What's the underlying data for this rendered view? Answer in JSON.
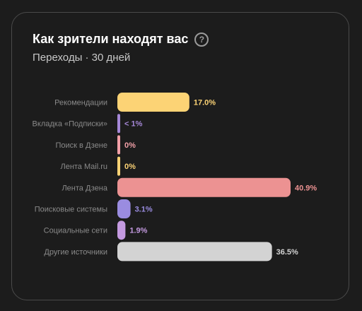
{
  "card": {
    "title": "Как зрители находят вас",
    "help_icon": "question-circle-icon",
    "help_symbol": "?",
    "subtitle": "Переходы · 30 дней"
  },
  "chart_data": {
    "type": "bar",
    "orientation": "horizontal",
    "categories": [
      "Рекомендации",
      "Вкладка «Подписки»",
      "Поиск в Дзене",
      "Лента Mail.ru",
      "Лента Дзена",
      "Поисковые системы",
      "Социальные сети",
      "Другие источники"
    ],
    "values": [
      17.0,
      0.5,
      0.0,
      0.0,
      40.9,
      3.1,
      1.9,
      36.5
    ],
    "value_labels": [
      "17.0%",
      "< 1%",
      "0%",
      "0%",
      "40.9%",
      "3.1%",
      "1.9%",
      "36.5%"
    ],
    "colors": [
      "#fcd375",
      "#a688d8",
      "#f2a0a8",
      "#fcd375",
      "#ec9292",
      "#9a8ce0",
      "#c49ae0",
      "#d3d3d3"
    ],
    "xlim": [
      0,
      40.9
    ],
    "grid": false,
    "legend": "none"
  }
}
